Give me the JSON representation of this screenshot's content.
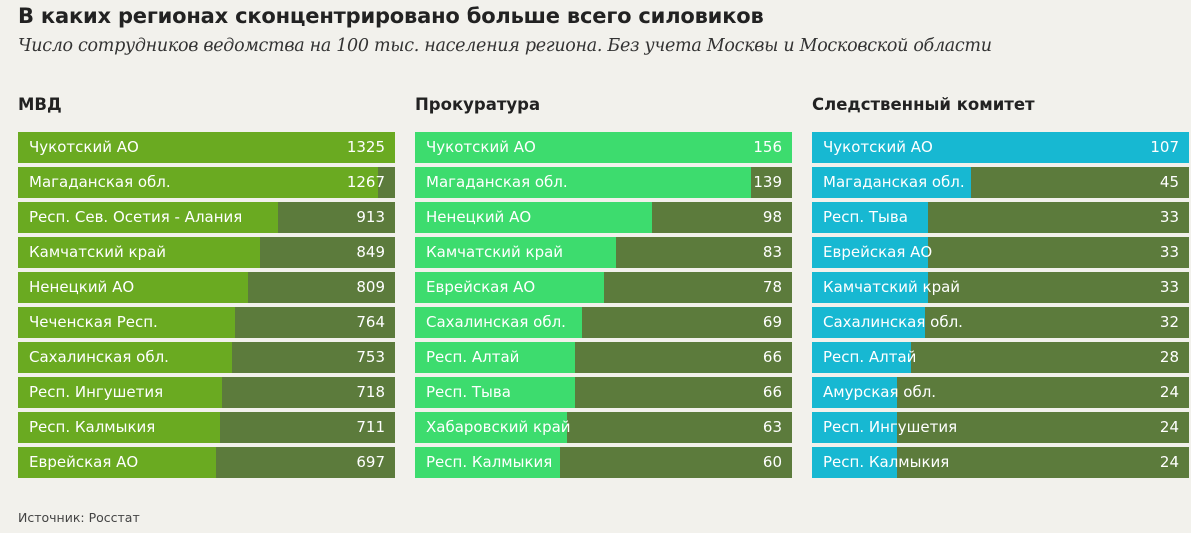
{
  "title": "В каких регионах сконцентрировано больше всего силовиков",
  "subtitle": "Число сотрудников ведомства на 100 тыс. населения региона. Без учета Москвы и Московской области",
  "source": "Источник: Росстат",
  "colors": {
    "background": "#f2f1ec",
    "bar_track": "#5c7b3c"
  },
  "chart_data": [
    {
      "type": "bar",
      "title": "МВД",
      "color": "#6aaa21",
      "categories": [
        "Чукотский АО",
        "Магаданская обл.",
        "Респ. Сев. Осетия - Алания",
        "Камчатский край",
        "Ненецкий АО",
        "Чеченская Респ.",
        "Сахалинская обл.",
        "Респ. Ингушетия",
        "Респ. Калмыкия",
        "Еврейская АО"
      ],
      "values": [
        1325,
        1267,
        913,
        849,
        809,
        764,
        753,
        718,
        711,
        697
      ]
    },
    {
      "type": "bar",
      "title": "Прокуратура",
      "color": "#3ddc6e",
      "categories": [
        "Чукотский АО",
        "Магаданская обл.",
        "Ненецкий АО",
        "Камчатский край",
        "Еврейская АО",
        "Сахалинская обл.",
        "Респ. Алтай",
        "Респ. Тыва",
        "Хабаровский край",
        "Респ. Калмыкия"
      ],
      "values": [
        156,
        139,
        98,
        83,
        78,
        69,
        66,
        66,
        63,
        60
      ]
    },
    {
      "type": "bar",
      "title": "Следственный комитет",
      "color": "#17b8d2",
      "categories": [
        "Чукотский АО",
        "Магаданская обл.",
        "Респ. Тыва",
        "Еврейская АО",
        "Камчатский край",
        "Сахалинская обл.",
        "Респ. Алтай",
        "Амурская обл.",
        "Респ. Ингушетия",
        "Респ. Калмыкия"
      ],
      "values": [
        107,
        45,
        33,
        33,
        33,
        32,
        28,
        24,
        24,
        24
      ]
    }
  ]
}
